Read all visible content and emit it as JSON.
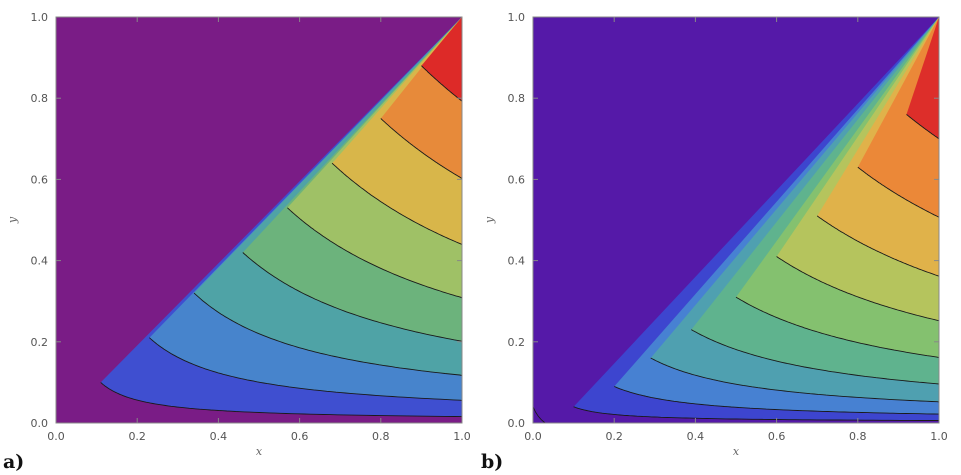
{
  "chart_data": [
    {
      "type": "contour",
      "panel_label": "a)",
      "title": "",
      "xlabel": "x",
      "ylabel": "y",
      "xlim": [
        0,
        1
      ],
      "ylim": [
        0,
        1
      ],
      "xticks": [
        "0.0",
        "0.2",
        "0.4",
        "0.6",
        "0.8",
        "1.0"
      ],
      "yticks": [
        "0.0",
        "0.2",
        "0.4",
        "0.6",
        "0.8",
        "1.0"
      ],
      "contour_x_at_y1": [
        0.11,
        0.23,
        0.34,
        0.46,
        0.57,
        0.68,
        0.8,
        0.9
      ],
      "contour_y_at_x1": [
        0.1,
        0.21,
        0.32,
        0.42,
        0.53,
        0.64,
        0.75,
        0.88
      ],
      "band_colors": [
        "#7a1c86",
        "#3f4fd0",
        "#4784cc",
        "#4fa3a6",
        "#6cb37c",
        "#9fc166",
        "#d8b64a",
        "#e78a3a",
        "#dd2a28"
      ]
    },
    {
      "type": "contour",
      "panel_label": "b)",
      "title": "",
      "xlabel": "x",
      "ylabel": "y",
      "xlim": [
        0,
        1
      ],
      "ylim": [
        0,
        1
      ],
      "xticks": [
        "0.0",
        "0.2",
        "0.4",
        "0.6",
        "0.8",
        "1.0"
      ],
      "yticks": [
        "0.0",
        "0.2",
        "0.4",
        "0.6",
        "0.8",
        "1.0"
      ],
      "contour_x_at_y1": [
        0.1,
        0.2,
        0.29,
        0.39,
        0.5,
        0.6,
        0.7,
        0.8,
        0.92
      ],
      "contour_y_at_x1": [
        0.04,
        0.09,
        0.16,
        0.23,
        0.31,
        0.41,
        0.51,
        0.63,
        0.76,
        0.9
      ],
      "corner_contour": [
        0.03,
        0.04
      ],
      "band_colors": [
        "#5519a8",
        "#3d45cf",
        "#4781d2",
        "#4fa0b0",
        "#5fb38e",
        "#84c16f",
        "#b5c45d",
        "#e0b24a",
        "#eb8838",
        "#dd2e2a",
        "#d9251f"
      ]
    }
  ]
}
